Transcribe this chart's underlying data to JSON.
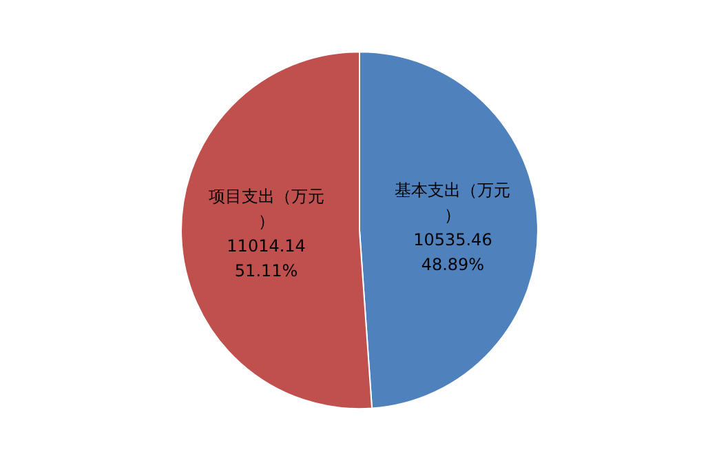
{
  "chart_data": {
    "type": "pie",
    "categories": [
      "基本支出（万元）",
      "项目支出（万元）"
    ],
    "values": [
      48.89,
      51.11
    ],
    "colors": [
      "#4f81bd",
      "#c0504d"
    ],
    "value_labels": [
      "10535.46\n48.89%",
      "11014.14\n51.11%"
    ],
    "legend": false
  }
}
